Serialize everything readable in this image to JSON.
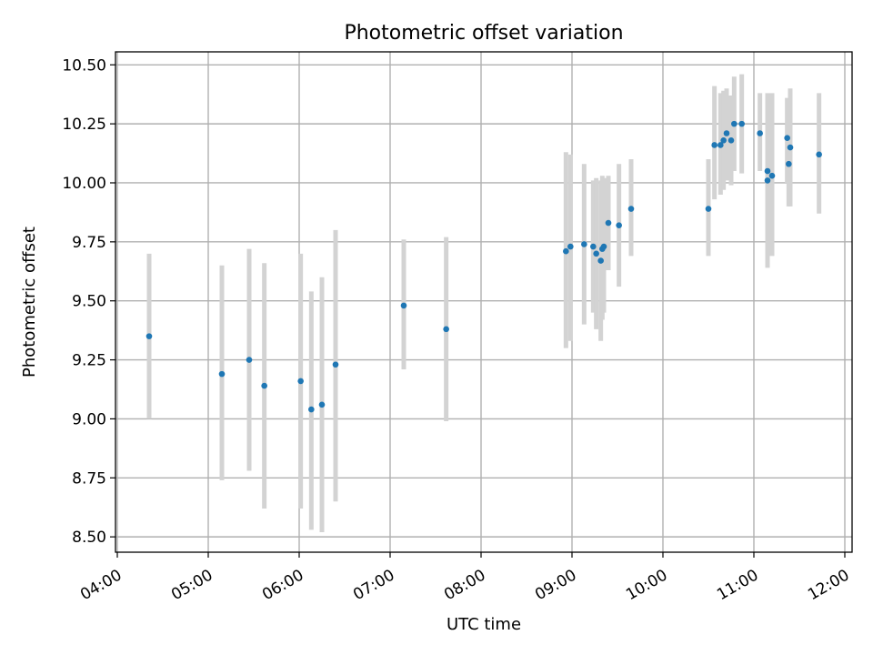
{
  "chart_data": {
    "type": "scatter",
    "title": "Photometric offset variation",
    "xlabel": "UTC time",
    "ylabel": "Photometric offset",
    "grid": true,
    "xlim_hours": [
      3.98,
      12.08
    ],
    "ylim": [
      8.435,
      10.555
    ],
    "x_ticks": [
      {
        "value": 4,
        "label": "04:00"
      },
      {
        "value": 5,
        "label": "05:00"
      },
      {
        "value": 6,
        "label": "06:00"
      },
      {
        "value": 7,
        "label": "07:00"
      },
      {
        "value": 8,
        "label": "08:00"
      },
      {
        "value": 9,
        "label": "09:00"
      },
      {
        "value": 10,
        "label": "10:00"
      },
      {
        "value": 11,
        "label": "11:00"
      },
      {
        "value": 12,
        "label": "12:00"
      }
    ],
    "y_ticks": [
      {
        "value": 8.5,
        "label": "8.50"
      },
      {
        "value": 8.75,
        "label": "8.75"
      },
      {
        "value": 9.0,
        "label": "9.00"
      },
      {
        "value": 9.25,
        "label": "9.25"
      },
      {
        "value": 9.5,
        "label": "9.50"
      },
      {
        "value": 9.75,
        "label": "9.75"
      },
      {
        "value": 10.0,
        "label": "10.00"
      },
      {
        "value": 10.25,
        "label": "10.25"
      },
      {
        "value": 10.5,
        "label": "10.50"
      }
    ],
    "colors": {
      "points": "#1f77b4",
      "errorbars": "#d3d3d3"
    },
    "series": [
      {
        "points": [
          {
            "x": "04:21",
            "y": 9.35,
            "ylow": 9.0,
            "yhigh": 9.7
          },
          {
            "x": "05:09",
            "y": 9.19,
            "ylow": 8.74,
            "yhigh": 9.65
          },
          {
            "x": "05:27",
            "y": 9.25,
            "ylow": 8.78,
            "yhigh": 9.72
          },
          {
            "x": "05:37",
            "y": 9.14,
            "ylow": 8.62,
            "yhigh": 9.66
          },
          {
            "x": "06:01",
            "y": 9.16,
            "ylow": 8.62,
            "yhigh": 9.7
          },
          {
            "x": "06:08",
            "y": 9.04,
            "ylow": 8.53,
            "yhigh": 9.54
          },
          {
            "x": "06:15",
            "y": 9.06,
            "ylow": 8.52,
            "yhigh": 9.6
          },
          {
            "x": "06:24",
            "y": 9.23,
            "ylow": 8.65,
            "yhigh": 9.8
          },
          {
            "x": "07:09",
            "y": 9.48,
            "ylow": 9.21,
            "yhigh": 9.76
          },
          {
            "x": "07:37",
            "y": 9.38,
            "ylow": 8.99,
            "yhigh": 9.77
          },
          {
            "x": "08:56",
            "y": 9.71,
            "ylow": 9.3,
            "yhigh": 10.13
          },
          {
            "x": "08:59",
            "y": 9.73,
            "ylow": 9.33,
            "yhigh": 10.12
          },
          {
            "x": "09:08",
            "y": 9.74,
            "ylow": 9.4,
            "yhigh": 10.08
          },
          {
            "x": "09:14",
            "y": 9.73,
            "ylow": 9.45,
            "yhigh": 10.01
          },
          {
            "x": "09:16",
            "y": 9.7,
            "ylow": 9.38,
            "yhigh": 10.02
          },
          {
            "x": "09:19",
            "y": 9.67,
            "ylow": 9.33,
            "yhigh": 10.01
          },
          {
            "x": "09:20",
            "y": 9.72,
            "ylow": 9.42,
            "yhigh": 10.03
          },
          {
            "x": "09:21",
            "y": 9.73,
            "ylow": 9.45,
            "yhigh": 10.02
          },
          {
            "x": "09:24",
            "y": 9.83,
            "ylow": 9.63,
            "yhigh": 10.03
          },
          {
            "x": "09:31",
            "y": 9.82,
            "ylow": 9.56,
            "yhigh": 10.08
          },
          {
            "x": "09:39",
            "y": 9.89,
            "ylow": 9.69,
            "yhigh": 10.1
          },
          {
            "x": "10:30",
            "y": 9.89,
            "ylow": 9.69,
            "yhigh": 10.1
          },
          {
            "x": "10:34",
            "y": 10.16,
            "ylow": 9.93,
            "yhigh": 10.41
          },
          {
            "x": "10:38",
            "y": 10.16,
            "ylow": 9.95,
            "yhigh": 10.38
          },
          {
            "x": "10:40",
            "y": 10.18,
            "ylow": 9.97,
            "yhigh": 10.39
          },
          {
            "x": "10:42",
            "y": 10.21,
            "ylow": 10.01,
            "yhigh": 10.4
          },
          {
            "x": "10:45",
            "y": 10.18,
            "ylow": 9.99,
            "yhigh": 10.37
          },
          {
            "x": "10:47",
            "y": 10.25,
            "ylow": 10.05,
            "yhigh": 10.45
          },
          {
            "x": "10:52",
            "y": 10.25,
            "ylow": 10.04,
            "yhigh": 10.46
          },
          {
            "x": "11:04",
            "y": 10.21,
            "ylow": 10.05,
            "yhigh": 10.38
          },
          {
            "x": "11:09",
            "y": 10.05,
            "ylow": 9.7,
            "yhigh": 10.38
          },
          {
            "x": "11:09",
            "y": 10.01,
            "ylow": 9.64,
            "yhigh": 10.37
          },
          {
            "x": "11:12",
            "y": 10.03,
            "ylow": 9.69,
            "yhigh": 10.38
          },
          {
            "x": "11:22",
            "y": 10.19,
            "ylow": 10.0,
            "yhigh": 10.36
          },
          {
            "x": "11:23",
            "y": 10.08,
            "ylow": 9.9,
            "yhigh": 10.25
          },
          {
            "x": "11:24",
            "y": 10.15,
            "ylow": 9.9,
            "yhigh": 10.4
          },
          {
            "x": "11:43",
            "y": 10.12,
            "ylow": 9.87,
            "yhigh": 10.38
          }
        ]
      }
    ]
  }
}
